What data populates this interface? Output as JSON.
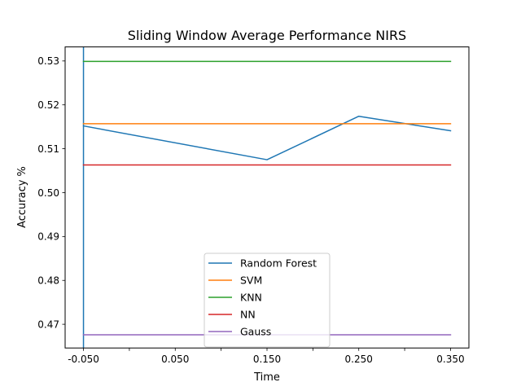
{
  "chart_data": {
    "type": "line",
    "title": "Sliding Window Average Performance NIRS",
    "xlabel": "Time",
    "ylabel": "Accuracy %",
    "xlim": [
      -0.07,
      0.37
    ],
    "ylim": [
      0.4646,
      0.5332
    ],
    "x_ticks": [
      -0.05,
      0.0,
      0.05,
      0.1,
      0.15,
      0.2,
      0.25,
      0.3,
      0.35
    ],
    "x_tick_labels": [
      "-0.050",
      "",
      "0.050",
      "",
      "0.150",
      "",
      "0.250",
      "",
      "0.350"
    ],
    "y_ticks": [
      0.47,
      0.48,
      0.49,
      0.5,
      0.51,
      0.52,
      0.53
    ],
    "y_tick_labels": [
      "0.47",
      "0.48",
      "0.49",
      "0.50",
      "0.51",
      "0.52",
      "0.53"
    ],
    "grid": false,
    "legend_position": "lower center",
    "series": [
      {
        "name": "Random Forest",
        "color": "#1f77b4",
        "points": [
          [
            -0.05,
            0.5152
          ],
          [
            0.15,
            0.5075
          ],
          [
            0.25,
            0.5174
          ],
          [
            0.35,
            0.5141
          ]
        ]
      },
      {
        "name": "SVM",
        "color": "#ff7f0e",
        "points": [
          [
            -0.05,
            0.5157
          ],
          [
            0.35,
            0.5157
          ]
        ]
      },
      {
        "name": "KNN",
        "color": "#2ca02c",
        "points": [
          [
            -0.05,
            0.5299
          ],
          [
            0.35,
            0.5299
          ]
        ]
      },
      {
        "name": "NN",
        "color": "#d62728",
        "points": [
          [
            -0.05,
            0.5063
          ],
          [
            0.35,
            0.5063
          ]
        ]
      },
      {
        "name": "Gauss",
        "color": "#9467bd",
        "points": [
          [
            -0.05,
            0.4676
          ],
          [
            0.35,
            0.4676
          ]
        ]
      }
    ],
    "vertical_lines": [
      {
        "x": -0.05,
        "color": "#1f77b4"
      }
    ]
  }
}
